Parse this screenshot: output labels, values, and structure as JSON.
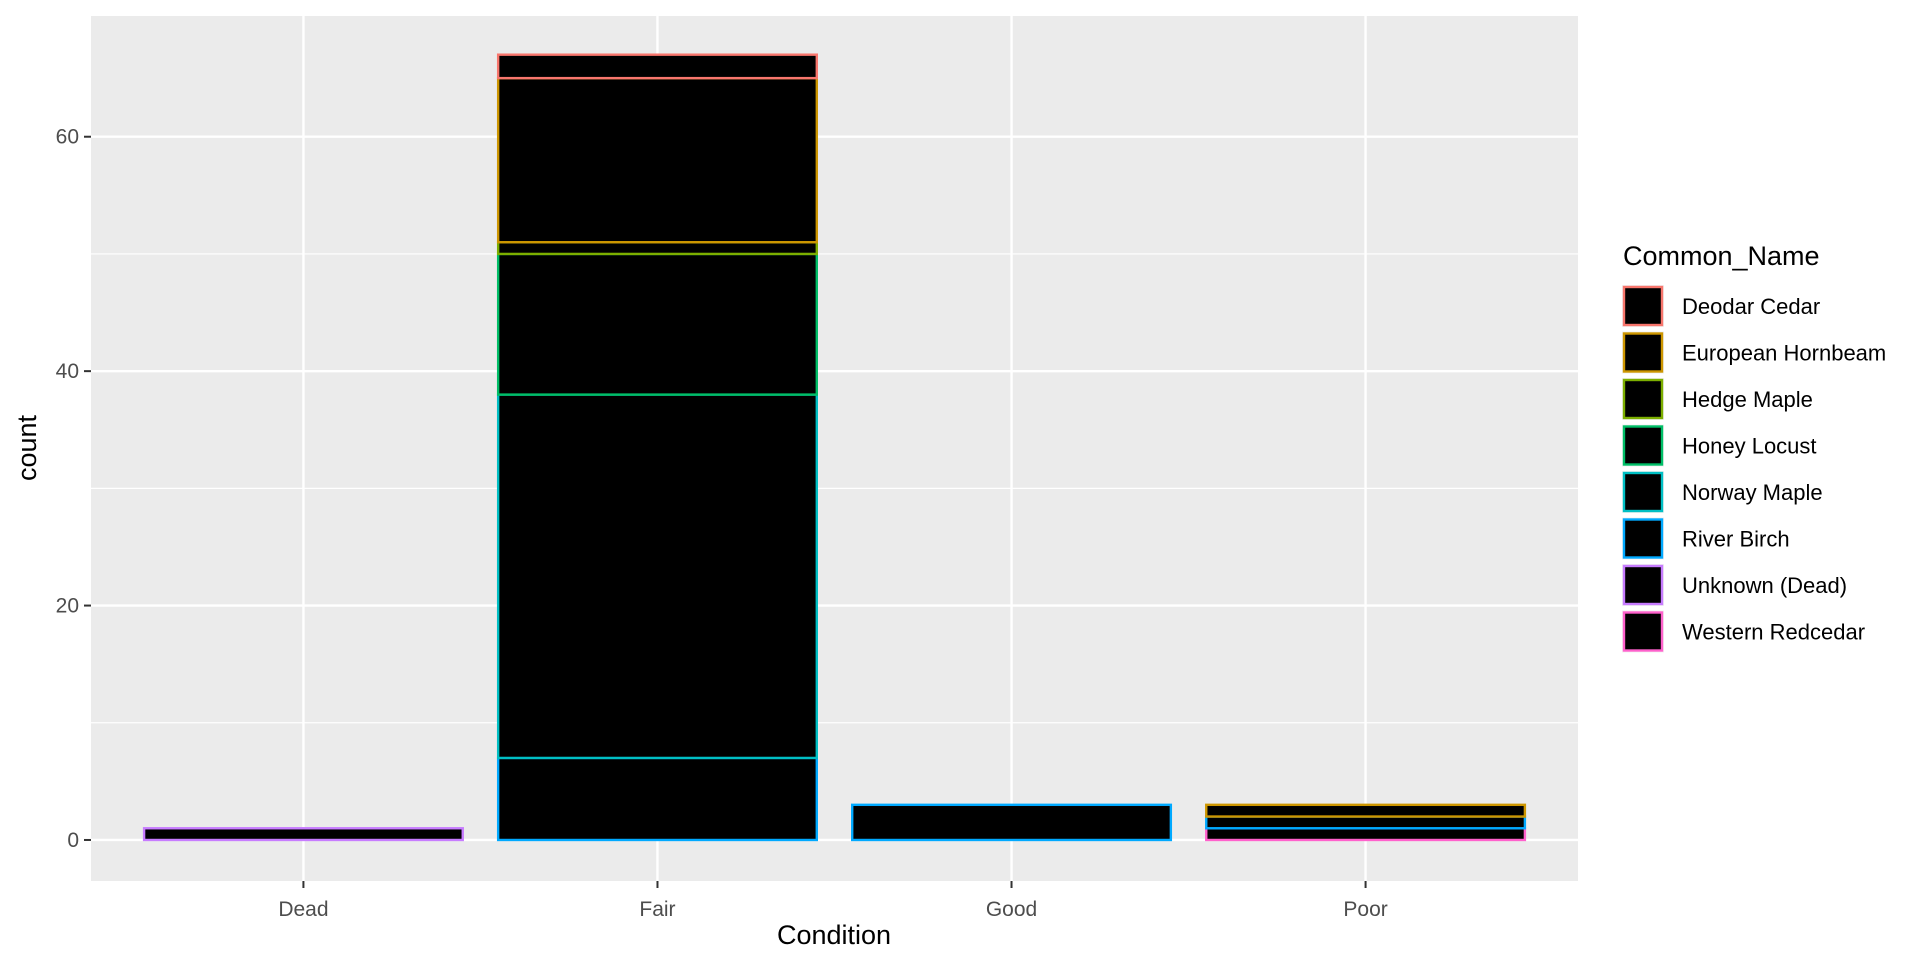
{
  "chart_data": {
    "type": "bar",
    "stacked": true,
    "title": "",
    "xlabel": "Condition",
    "ylabel": "count",
    "categories": [
      "Dead",
      "Fair",
      "Good",
      "Poor"
    ],
    "ylim": [
      -3.5,
      70.3
    ],
    "yticks": [
      0,
      20,
      40,
      60
    ],
    "grid": true,
    "fill_color": "#000000",
    "panel_background": "#ebebeb",
    "legend_title": "Common_Name",
    "legend_position": "right",
    "series": [
      {
        "name": "Deodar Cedar",
        "color": "#F8766D",
        "values": [
          0,
          2,
          0,
          0
        ]
      },
      {
        "name": "European Hornbeam",
        "color": "#CD9600",
        "values": [
          0,
          14,
          0,
          1
        ]
      },
      {
        "name": "Hedge Maple",
        "color": "#7CAE00",
        "values": [
          0,
          1,
          0,
          0
        ]
      },
      {
        "name": "Honey Locust",
        "color": "#00BE67",
        "values": [
          0,
          12,
          0,
          0
        ]
      },
      {
        "name": "Norway Maple",
        "color": "#00BFC4",
        "values": [
          0,
          31,
          0,
          0
        ]
      },
      {
        "name": "River Birch",
        "color": "#00A9FF",
        "values": [
          0,
          7,
          3,
          1
        ]
      },
      {
        "name": "Unknown (Dead)",
        "color": "#C77CFF",
        "values": [
          1,
          0,
          0,
          0
        ]
      },
      {
        "name": "Western Redcedar",
        "color": "#FF61CC",
        "values": [
          0,
          0,
          0,
          1
        ]
      }
    ]
  }
}
